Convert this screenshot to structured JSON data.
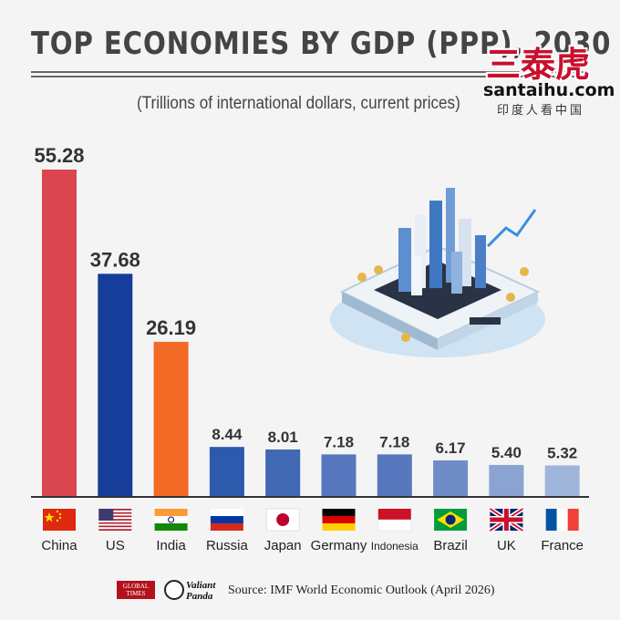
{
  "header": {
    "title": "TOP ECONOMIES BY GDP (PPP), 2030",
    "subtitle": "(Trillions of international dollars, current prices)"
  },
  "watermark": {
    "chinese": "三泰虎",
    "site": "santaihu.com",
    "tagline": "印度人看中国"
  },
  "footer": {
    "logo_global_times": "GLOBAL TIMES",
    "logo_valiant_panda": "Valiant Panda",
    "source": "Source: IMF World Economic Outlook (April 2026)"
  },
  "chart_data": {
    "type": "bar",
    "title": "TOP ECONOMIES BY GDP (PPP), 2030",
    "subtitle": "(Trillions of international dollars, current prices)",
    "categories": [
      "China",
      "US",
      "India",
      "Russia",
      "Japan",
      "Germany",
      "Indonesia",
      "Brazil",
      "UK",
      "France"
    ],
    "values": [
      55.28,
      37.68,
      26.19,
      8.44,
      8.01,
      7.18,
      7.18,
      6.17,
      5.4,
      5.32
    ],
    "value_labels": [
      "55.28",
      "37.68",
      "26.19",
      "8.44",
      "8.01",
      "7.18",
      "7.18",
      "6.17",
      "5.40",
      "5.32"
    ],
    "bar_colors": [
      "#d9464f",
      "#173d9a",
      "#f26a23",
      "#2d5aad",
      "#4068b3",
      "#5677bd",
      "#5677bd",
      "#6f8cc6",
      "#8aa3d1",
      "#a0b5db"
    ],
    "ylim": [
      0,
      55.28
    ],
    "grid": false,
    "legend": "none"
  }
}
